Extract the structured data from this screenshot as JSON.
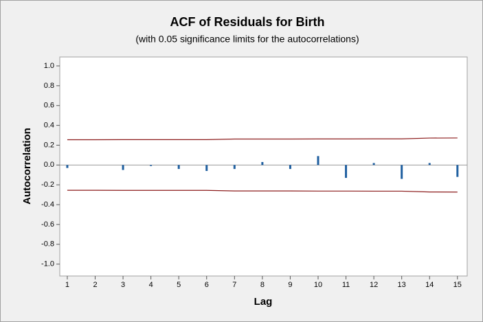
{
  "chart_data": {
    "type": "acf",
    "title": "ACF of Residuals for Birth",
    "subtitle": "(with 0.05 significance limits for the autocorrelations)",
    "x_label": "Lag",
    "y_label": "Autocorrelation",
    "x": [
      1,
      2,
      3,
      4,
      5,
      6,
      7,
      8,
      9,
      10,
      11,
      12,
      13,
      14,
      15
    ],
    "values": [
      -0.03,
      0,
      -0.05,
      -0.01,
      -0.04,
      -0.06,
      -0.04,
      0.03,
      -0.04,
      0.09,
      -0.13,
      0.02,
      -0.14,
      0.02,
      -0.12
    ],
    "color": "#1f5fa0",
    "upper_limit": [
      0.255,
      0.255,
      0.256,
      0.256,
      0.256,
      0.256,
      0.262,
      0.262,
      0.262,
      0.263,
      0.263,
      0.264,
      0.264,
      0.272,
      0.273
    ],
    "lower_limit": [
      -0.255,
      -0.255,
      -0.256,
      -0.256,
      -0.256,
      -0.256,
      -0.262,
      -0.262,
      -0.262,
      -0.263,
      -0.263,
      -0.264,
      -0.264,
      -0.272,
      -0.273
    ],
    "limit_color": "#8b1a1a",
    "xlim": [
      0.73,
      15.35
    ],
    "ylim": [
      -1.12,
      1.09
    ],
    "xticks": [
      1,
      2,
      3,
      4,
      5,
      6,
      7,
      8,
      9,
      10,
      11,
      12,
      13,
      14,
      15
    ],
    "yticks": [
      {
        "value": -1,
        "label": "-1.0"
      },
      -0.8,
      -0.6,
      -0.4,
      -0.2,
      {
        "value": 0,
        "label": "0.0"
      },
      0.2,
      0.4,
      0.6,
      0.8,
      {
        "value": 1,
        "label": "1.0"
      }
    ]
  }
}
